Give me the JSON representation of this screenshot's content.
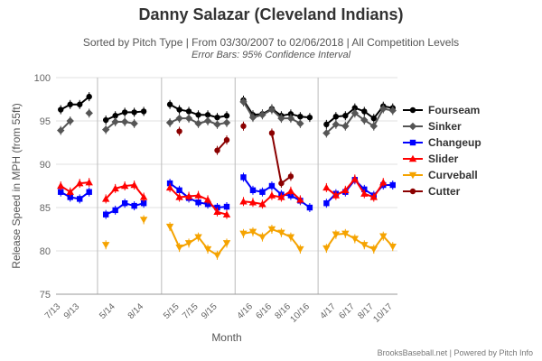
{
  "title": "Danny Salazar (Cleveland Indians)",
  "subtitle": "Sorted by Pitch Type | From 03/30/2007 to 02/06/2018 | All Competition Levels",
  "subtitle2": "Error Bars: 95% Confidence Interval",
  "credit": "BrooksBaseball.net | Powered by Pitch Info",
  "chart_data": {
    "type": "line",
    "xlabel": "Month",
    "ylabel": "Release Speed in MPH (from 55ft)",
    "ylim": [
      75,
      100
    ],
    "yticks": [
      75,
      80,
      85,
      90,
      95,
      100
    ],
    "grid": true,
    "legend_position": "right",
    "segments": [
      {
        "months": [
          "7/13",
          "8/13",
          "9/13",
          "10/13"
        ],
        "tick_labels": [
          {
            "label": "7/13",
            "i": 0
          },
          {
            "label": "9/13",
            "i": 2
          }
        ]
      },
      {
        "months": [
          "4/14",
          "5/14",
          "6/14",
          "7/14",
          "8/14",
          "9/14"
        ],
        "tick_labels": [
          {
            "label": "5/14",
            "i": 1
          },
          {
            "label": "8/14",
            "i": 4
          }
        ]
      },
      {
        "months": [
          "4/15",
          "5/15",
          "6/15",
          "7/15",
          "8/15",
          "9/15",
          "10/15"
        ],
        "tick_labels": [
          {
            "label": "5/15",
            "i": 1
          },
          {
            "label": "7/15",
            "i": 3
          },
          {
            "label": "9/15",
            "i": 5
          }
        ]
      },
      {
        "months": [
          "3/16",
          "4/16",
          "5/16",
          "6/16",
          "7/16",
          "8/16",
          "9/16",
          "10/16"
        ],
        "tick_labels": [
          {
            "label": "4/16",
            "i": 1
          },
          {
            "label": "6/16",
            "i": 3
          },
          {
            "label": "8/16",
            "i": 5
          },
          {
            "label": "10/16",
            "i": 7
          }
        ]
      },
      {
        "months": [
          "3/17",
          "4/17",
          "5/17",
          "6/17",
          "7/17",
          "8/17",
          "9/17",
          "10/17"
        ],
        "tick_labels": [
          {
            "label": "4/17",
            "i": 1
          },
          {
            "label": "6/17",
            "i": 3
          },
          {
            "label": "8/17",
            "i": 5
          },
          {
            "label": "10/17",
            "i": 7
          }
        ]
      }
    ],
    "series": [
      {
        "name": "Fourseam",
        "color": "#000000",
        "marker": "circle",
        "values": [
          [
            96.3,
            96.9,
            96.9,
            97.8
          ],
          [
            95.1,
            95.6,
            96.0,
            96.0,
            96.1,
            null
          ],
          [
            96.9,
            96.3,
            96.1,
            95.7,
            95.7,
            95.4,
            95.6
          ],
          [
            97.4,
            95.7,
            95.8,
            96.4,
            95.6,
            95.8,
            95.5,
            95.4
          ],
          [
            94.6,
            95.5,
            95.6,
            96.5,
            96.1,
            95.3,
            96.7,
            96.5
          ]
        ]
      },
      {
        "name": "Sinker",
        "color": "#555555",
        "marker": "diamond",
        "values": [
          [
            93.9,
            95.0,
            null,
            95.9
          ],
          [
            94.0,
            94.9,
            94.9,
            94.7,
            null,
            null
          ],
          [
            94.8,
            95.3,
            95.3,
            94.7,
            95.0,
            94.6,
            94.8
          ],
          [
            97.2,
            95.4,
            95.7,
            96.3,
            95.3,
            95.3,
            94.7,
            null
          ],
          [
            93.6,
            94.6,
            94.4,
            95.9,
            95.1,
            94.4,
            96.4,
            96.2
          ]
        ]
      },
      {
        "name": "Changeup",
        "color": "#0000ff",
        "marker": "square",
        "values": [
          [
            86.8,
            86.2,
            86.0,
            86.8
          ],
          [
            84.2,
            84.7,
            85.5,
            85.2,
            85.5,
            null
          ],
          [
            87.8,
            87.0,
            86.1,
            85.6,
            85.4,
            85.0,
            85.1
          ],
          [
            88.5,
            87.0,
            86.8,
            87.5,
            86.5,
            86.4,
            85.8,
            85.0
          ],
          [
            85.5,
            86.6,
            86.8,
            88.2,
            87.1,
            86.4,
            87.6,
            87.6
          ]
        ]
      },
      {
        "name": "Slider",
        "color": "#ff0000",
        "marker": "triangle",
        "values": [
          [
            87.5,
            86.8,
            87.8,
            87.9
          ],
          [
            86.0,
            87.2,
            87.5,
            87.6,
            86.2,
            null
          ],
          [
            87.3,
            86.2,
            86.3,
            86.4,
            85.9,
            84.5,
            84.2
          ],
          [
            85.7,
            85.6,
            85.4,
            86.4,
            86.2,
            86.9,
            85.9,
            null
          ],
          [
            87.3,
            86.4,
            87.0,
            88.3,
            86.6,
            86.2,
            87.9,
            null
          ]
        ]
      },
      {
        "name": "Curveball",
        "color": "#f5a300",
        "marker": "triangle-down",
        "values": [
          [
            null,
            null,
            null,
            null
          ],
          [
            80.7,
            null,
            null,
            null,
            83.6,
            null
          ],
          [
            82.8,
            80.4,
            80.9,
            81.6,
            80.2,
            79.5,
            80.9
          ],
          [
            82.0,
            82.2,
            81.6,
            82.5,
            82.1,
            81.6,
            80.2,
            null
          ],
          [
            80.3,
            81.9,
            82.0,
            81.4,
            80.7,
            80.2,
            81.7,
            80.5
          ]
        ]
      },
      {
        "name": "Cutter",
        "color": "#8b0000",
        "marker": "circle",
        "values": [
          [
            null,
            null,
            null,
            null
          ],
          [
            null,
            null,
            null,
            null,
            null,
            null
          ],
          [
            null,
            93.8,
            null,
            null,
            null,
            91.6,
            92.8
          ],
          [
            94.4,
            null,
            null,
            93.6,
            87.8,
            88.6,
            null,
            null
          ],
          [
            null,
            null,
            null,
            null,
            null,
            null,
            null,
            null
          ]
        ]
      }
    ]
  }
}
